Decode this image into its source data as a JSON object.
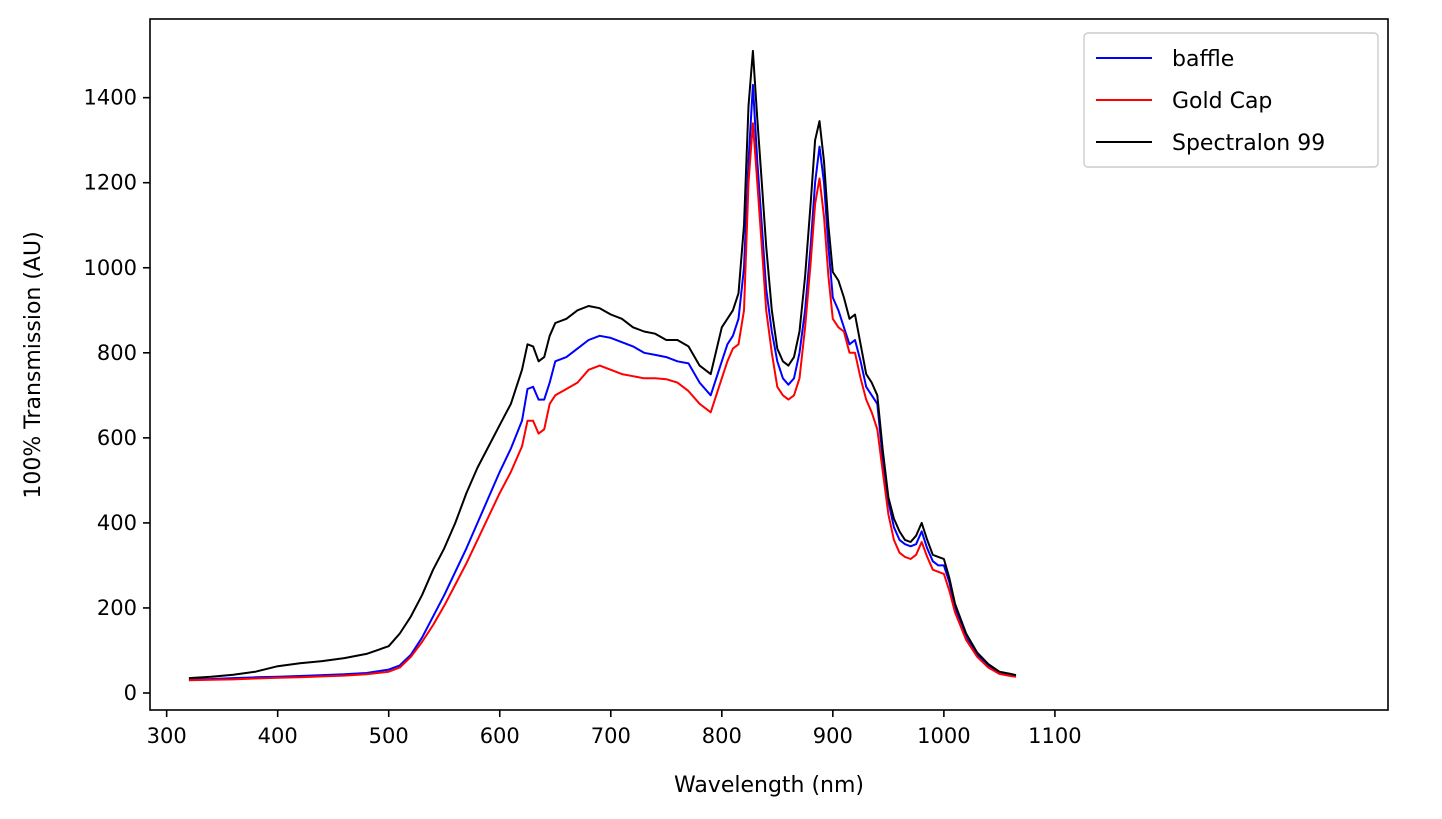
{
  "chart_data": {
    "type": "line",
    "title": "",
    "xlabel": "Wavelength (nm)",
    "ylabel": "100% Transmission (AU)",
    "xlim": [
      285,
      1400
    ],
    "ylim": [
      -40,
      1585
    ],
    "xticks": [
      300,
      400,
      500,
      600,
      700,
      800,
      900,
      1000,
      1100
    ],
    "yticks": [
      0,
      200,
      400,
      600,
      800,
      1000,
      1200,
      1400
    ],
    "grid": false,
    "legend_position": "top-right",
    "series": [
      {
        "name": "baffle",
        "color": "#0000ff",
        "x": [
          320,
          340,
          360,
          380,
          400,
          420,
          440,
          460,
          480,
          500,
          510,
          520,
          530,
          540,
          550,
          560,
          570,
          580,
          590,
          600,
          610,
          620,
          625,
          630,
          635,
          640,
          645,
          650,
          660,
          670,
          680,
          690,
          700,
          710,
          720,
          730,
          740,
          750,
          760,
          770,
          780,
          790,
          800,
          805,
          810,
          815,
          820,
          824,
          828,
          832,
          836,
          840,
          845,
          850,
          855,
          860,
          865,
          870,
          875,
          880,
          884,
          888,
          892,
          896,
          900,
          905,
          910,
          915,
          920,
          925,
          930,
          935,
          940,
          945,
          950,
          955,
          960,
          965,
          970,
          975,
          980,
          985,
          990,
          995,
          1000,
          1005,
          1010,
          1020,
          1030,
          1040,
          1050,
          1060,
          1065
        ],
        "y": [
          32,
          33,
          35,
          37,
          38,
          40,
          42,
          44,
          47,
          55,
          65,
          90,
          130,
          180,
          230,
          285,
          340,
          400,
          460,
          520,
          575,
          640,
          715,
          720,
          690,
          690,
          730,
          780,
          790,
          810,
          830,
          840,
          835,
          825,
          815,
          800,
          795,
          790,
          780,
          775,
          730,
          700,
          780,
          820,
          840,
          880,
          1000,
          1250,
          1430,
          1250,
          1100,
          950,
          850,
          780,
          740,
          725,
          740,
          800,
          900,
          1050,
          1200,
          1285,
          1200,
          1050,
          930,
          900,
          860,
          820,
          830,
          780,
          720,
          700,
          680,
          550,
          450,
          390,
          360,
          350,
          345,
          350,
          380,
          340,
          310,
          300,
          300,
          260,
          200,
          130,
          90,
          65,
          48,
          42,
          40
        ]
      },
      {
        "name": "Gold Cap",
        "color": "#ff0000",
        "x": [
          320,
          340,
          360,
          380,
          400,
          420,
          440,
          460,
          480,
          500,
          510,
          520,
          530,
          540,
          550,
          560,
          570,
          580,
          590,
          600,
          610,
          620,
          625,
          630,
          635,
          640,
          645,
          650,
          660,
          670,
          680,
          690,
          700,
          710,
          720,
          730,
          740,
          750,
          760,
          770,
          780,
          790,
          800,
          805,
          810,
          815,
          820,
          824,
          828,
          832,
          836,
          840,
          845,
          850,
          855,
          860,
          865,
          870,
          875,
          880,
          884,
          888,
          892,
          896,
          900,
          905,
          910,
          915,
          920,
          925,
          930,
          935,
          940,
          945,
          950,
          955,
          960,
          965,
          970,
          975,
          980,
          985,
          990,
          995,
          1000,
          1005,
          1010,
          1020,
          1030,
          1040,
          1050,
          1060,
          1065
        ],
        "y": [
          30,
          31,
          32,
          34,
          36,
          37,
          39,
          41,
          44,
          50,
          60,
          85,
          120,
          160,
          205,
          255,
          305,
          360,
          415,
          470,
          520,
          580,
          640,
          640,
          610,
          620,
          680,
          700,
          715,
          730,
          760,
          770,
          760,
          750,
          745,
          740,
          740,
          738,
          730,
          710,
          680,
          660,
          740,
          780,
          810,
          820,
          900,
          1200,
          1340,
          1200,
          1050,
          900,
          800,
          720,
          700,
          690,
          700,
          740,
          860,
          1010,
          1150,
          1210,
          1120,
          980,
          880,
          860,
          850,
          800,
          800,
          740,
          690,
          660,
          620,
          520,
          420,
          360,
          330,
          320,
          315,
          325,
          355,
          320,
          290,
          285,
          280,
          240,
          190,
          125,
          85,
          60,
          45,
          40,
          38
        ]
      },
      {
        "name": "Spectralon 99",
        "color": "#000000",
        "x": [
          320,
          340,
          360,
          380,
          400,
          420,
          440,
          460,
          480,
          500,
          510,
          520,
          530,
          540,
          550,
          560,
          570,
          580,
          590,
          600,
          610,
          620,
          625,
          630,
          635,
          640,
          645,
          650,
          660,
          670,
          680,
          690,
          700,
          710,
          720,
          730,
          740,
          750,
          760,
          770,
          780,
          790,
          800,
          805,
          810,
          815,
          820,
          824,
          828,
          832,
          836,
          840,
          845,
          850,
          855,
          860,
          865,
          870,
          875,
          880,
          884,
          888,
          892,
          896,
          900,
          905,
          910,
          915,
          920,
          925,
          930,
          935,
          940,
          945,
          950,
          955,
          960,
          965,
          970,
          975,
          980,
          985,
          990,
          995,
          1000,
          1005,
          1010,
          1020,
          1030,
          1040,
          1050,
          1060,
          1065
        ],
        "y": [
          35,
          38,
          43,
          50,
          63,
          70,
          75,
          82,
          92,
          110,
          140,
          180,
          230,
          290,
          340,
          400,
          470,
          530,
          580,
          630,
          680,
          760,
          820,
          815,
          780,
          790,
          840,
          870,
          880,
          900,
          910,
          905,
          890,
          880,
          860,
          850,
          845,
          830,
          830,
          815,
          770,
          750,
          860,
          880,
          900,
          940,
          1100,
          1380,
          1510,
          1350,
          1200,
          1050,
          900,
          810,
          780,
          770,
          790,
          850,
          980,
          1150,
          1300,
          1345,
          1250,
          1100,
          990,
          970,
          930,
          880,
          890,
          820,
          750,
          730,
          700,
          570,
          460,
          410,
          380,
          360,
          355,
          370,
          400,
          360,
          325,
          320,
          315,
          270,
          210,
          140,
          95,
          68,
          50,
          45,
          42
        ]
      }
    ]
  }
}
